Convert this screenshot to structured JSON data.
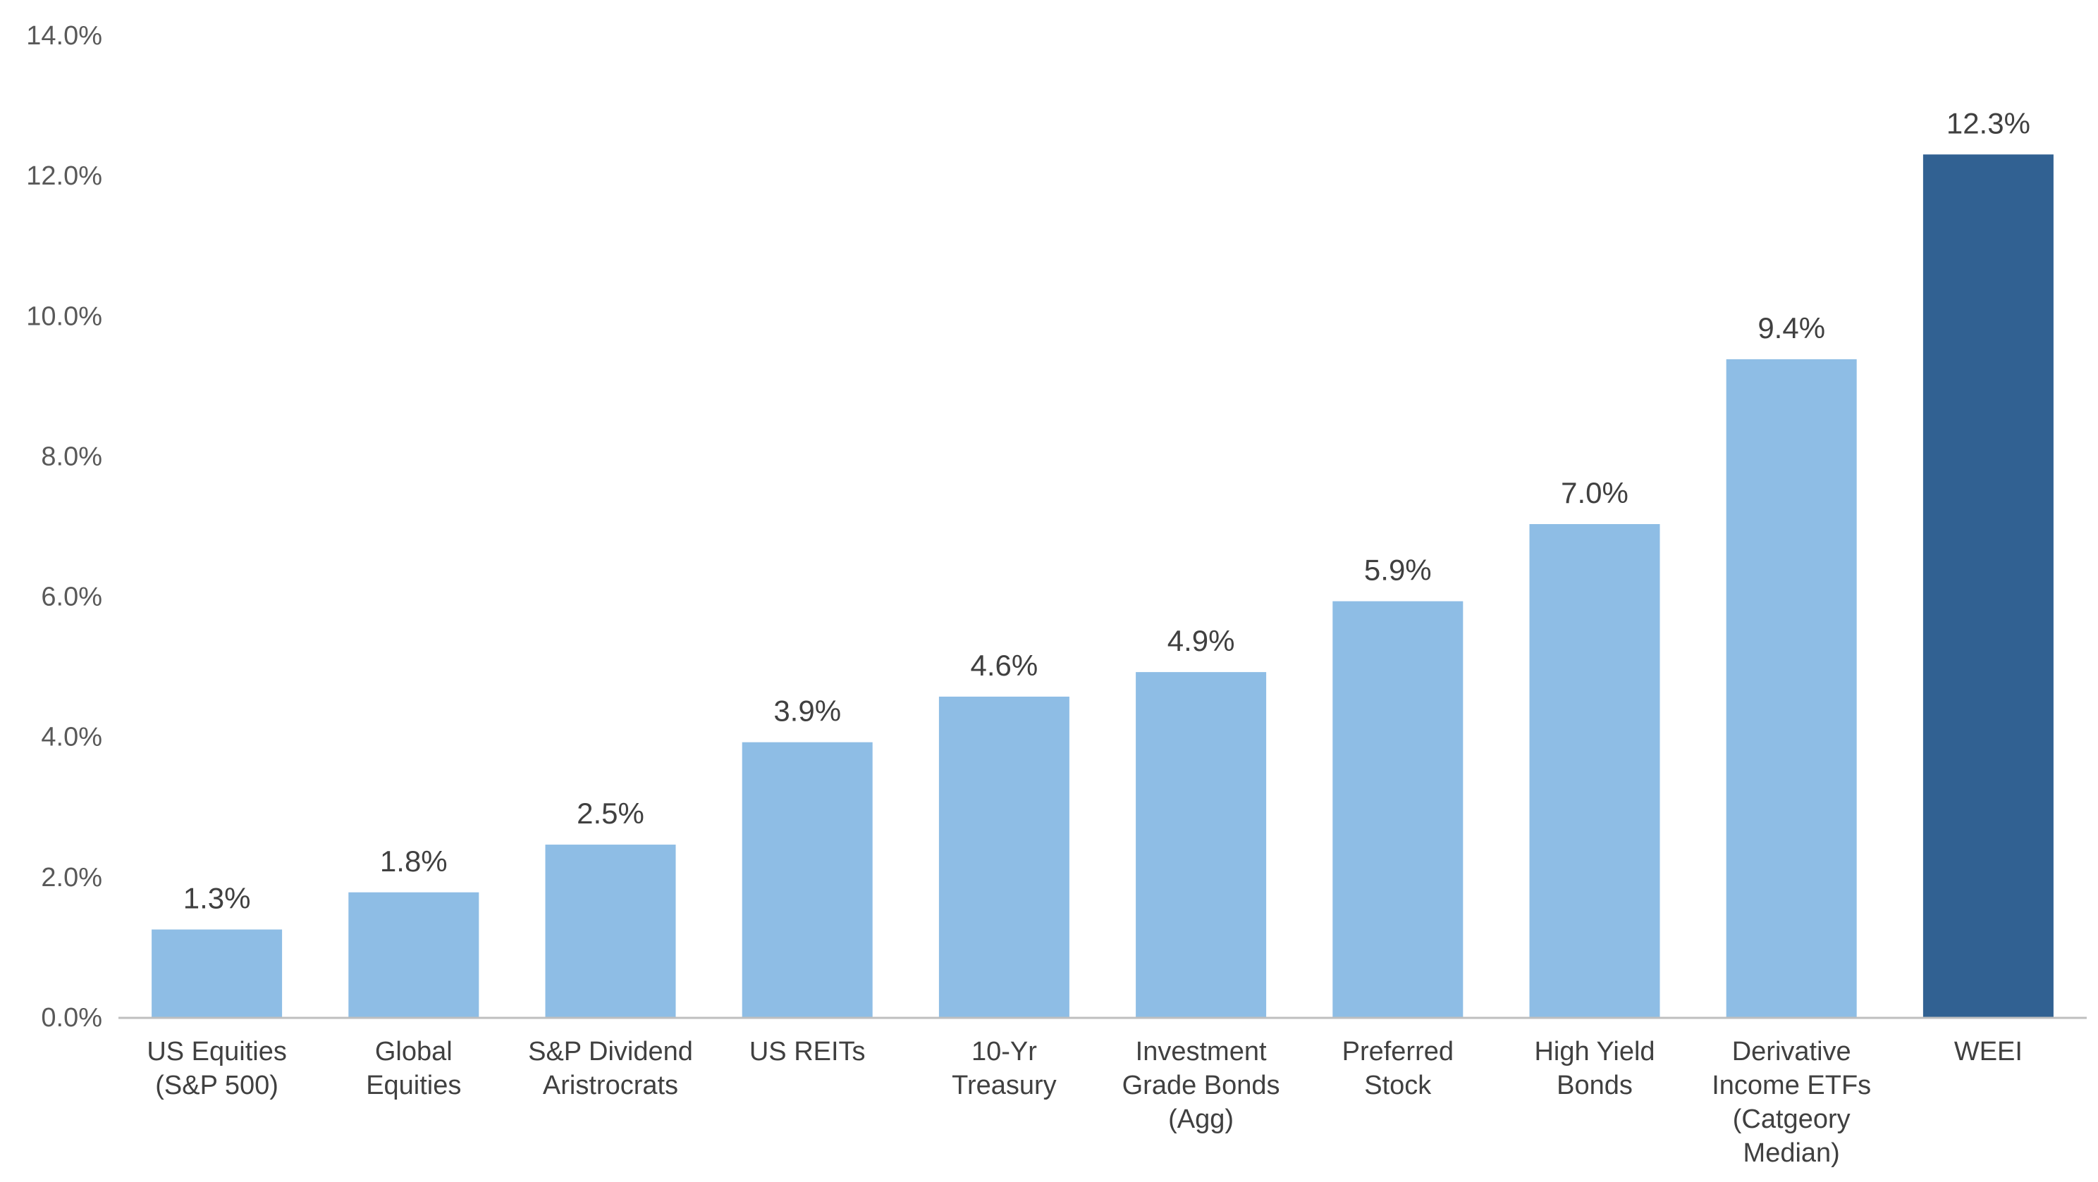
{
  "chart_data": {
    "type": "bar",
    "title": "",
    "xlabel": "",
    "ylabel": "",
    "ylim": [
      0,
      14
    ],
    "yticks": [
      0,
      2,
      4,
      6,
      8,
      10,
      12,
      14
    ],
    "ytick_labels": [
      "0.0%",
      "2.0%",
      "4.0%",
      "6.0%",
      "8.0%",
      "10.0%",
      "12.0%",
      "14.0%"
    ],
    "grid": false,
    "legend": "none",
    "categories": [
      [
        "US Equities",
        "(S&P 500)"
      ],
      [
        "Global",
        "Equities"
      ],
      [
        "S&P Dividend",
        "Aristrocrats"
      ],
      [
        "US REITs"
      ],
      [
        "10-Yr",
        "Treasury"
      ],
      [
        "Investment",
        "Grade Bonds",
        "(Agg)"
      ],
      [
        "Preferred",
        "Stock"
      ],
      [
        "High Yield",
        "Bonds"
      ],
      [
        "Derivative",
        "Income ETFs",
        "(Catgeory",
        "Median)"
      ],
      [
        "WEEI"
      ]
    ],
    "values": [
      1.25,
      1.78,
      2.46,
      3.92,
      4.57,
      4.92,
      5.93,
      7.03,
      9.38,
      12.3
    ],
    "data_labels": [
      "1.3%",
      "1.8%",
      "2.5%",
      "3.9%",
      "4.6%",
      "4.9%",
      "5.9%",
      "7.0%",
      "9.4%",
      "12.3%"
    ],
    "colors": {
      "default_bar": "#8EBDE5",
      "highlight_bar": "#316192",
      "axis": "#BFBFBF"
    },
    "highlight_index": 9
  }
}
